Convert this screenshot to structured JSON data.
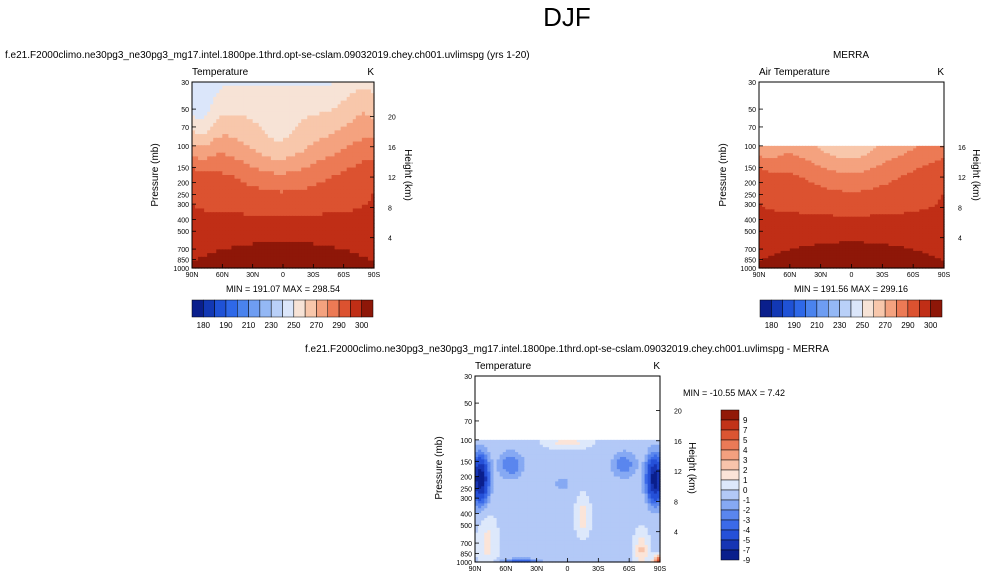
{
  "page_title": "DJF",
  "chart_data": [
    {
      "type": "heatmap",
      "id": "model",
      "title": "f.e21.F2000climo.ne30pg3_ne30pg3_mg17.intel.1800pe.1thrd.opt-se-cslam.09032019.chey.ch001.uvlimspg (yrs 1-20)",
      "left_label": "Temperature",
      "right_label": "K",
      "ylabel": "Pressure (mb)",
      "y2label": "Height (km)",
      "x_ticks": [
        "90N",
        "60N",
        "30N",
        "0",
        "30S",
        "60S",
        "90S"
      ],
      "x_values": [
        90,
        60,
        30,
        0,
        -30,
        -60,
        -90
      ],
      "y_ticks": [
        30,
        50,
        70,
        100,
        150,
        200,
        250,
        300,
        400,
        500,
        700,
        850,
        1000
      ],
      "y2_ticks": [
        4,
        8,
        12,
        16,
        20
      ],
      "min_max_text": "MIN = 191.07   MAX = 298.54",
      "min": 191.07,
      "max": 298.54,
      "p_top": 30,
      "levels": [
        180,
        185,
        190,
        195,
        200,
        205,
        210,
        220,
        230,
        240,
        250,
        260,
        270,
        280,
        290,
        300
      ],
      "legend_labels": [
        "180",
        "190",
        "210",
        "230",
        "250",
        "270",
        "290",
        "300"
      ]
    },
    {
      "type": "heatmap",
      "id": "obs",
      "title": "MERRA",
      "left_label": "Air Temperature",
      "right_label": "K",
      "ylabel": "Pressure (mb)",
      "y2label": "Height (km)",
      "x_ticks": [
        "90N",
        "60N",
        "30N",
        "0",
        "30S",
        "60S",
        "90S"
      ],
      "x_values": [
        90,
        60,
        30,
        0,
        -30,
        -60,
        -90
      ],
      "y_ticks": [
        30,
        50,
        70,
        100,
        150,
        200,
        250,
        300,
        400,
        500,
        700,
        850,
        1000
      ],
      "y2_ticks": [
        4,
        8,
        12,
        16
      ],
      "min_max_text": "MIN = 191.56   MAX = 299.16",
      "min": 191.56,
      "max": 299.16,
      "p_top": 100,
      "levels": [
        180,
        185,
        190,
        195,
        200,
        205,
        210,
        220,
        230,
        240,
        250,
        260,
        270,
        280,
        290,
        300
      ],
      "legend_labels": [
        "180",
        "190",
        "210",
        "230",
        "250",
        "270",
        "290",
        "300"
      ]
    },
    {
      "type": "heatmap",
      "id": "diff",
      "title": "f.e21.F2000climo.ne30pg3_ne30pg3_mg17.intel.1800pe.1thrd.opt-se-cslam.09032019.chey.ch001.uvlimspg - MERRA",
      "left_label": "Temperature",
      "right_label": "K",
      "ylabel": "Pressure (mb)",
      "y2label": "Height (km)",
      "x_ticks": [
        "90N",
        "60N",
        "30N",
        "0",
        "30S",
        "60S",
        "90S"
      ],
      "x_values": [
        90,
        60,
        30,
        0,
        -30,
        -60,
        -90
      ],
      "y_ticks": [
        30,
        50,
        70,
        100,
        150,
        200,
        250,
        300,
        400,
        500,
        700,
        850,
        1000
      ],
      "y2_ticks": [
        4,
        8,
        12,
        16,
        20
      ],
      "min_max_text": "MIN = -10.55   MAX =   7.42",
      "min": -10.55,
      "max": 7.42,
      "p_top": 100,
      "levels": [
        -9,
        -7,
        -5,
        -4,
        -3,
        -2,
        -1,
        0,
        1,
        2,
        3,
        4,
        5,
        7,
        9
      ],
      "legend_labels": [
        "9",
        "7",
        "5",
        "4",
        "3",
        "2",
        "1",
        "0",
        "-1",
        "-2",
        "-3",
        "-4",
        "-5",
        "-7",
        "-9"
      ]
    }
  ],
  "colors": {
    "temp_palette": [
      "#0a1f8c",
      "#1238b4",
      "#1f52d6",
      "#2e68e8",
      "#4a83ee",
      "#6e9df2",
      "#94b8f5",
      "#b9d0f8",
      "#dbe6fa",
      "#f7e3d6",
      "#f8c7ab",
      "#f4a27f",
      "#ec7a55",
      "#dc5230",
      "#c02e16",
      "#8e1708"
    ],
    "diff_palette": [
      "#0a1f8c",
      "#1735b4",
      "#2550d8",
      "#3b6ae8",
      "#5a86ee",
      "#86a9f3",
      "#b3c9f7",
      "#dde8fb",
      "#fbe4d8",
      "#f8c4ab",
      "#f3a07f",
      "#ea7a57",
      "#db5532",
      "#c23318",
      "#921a08"
    ]
  }
}
